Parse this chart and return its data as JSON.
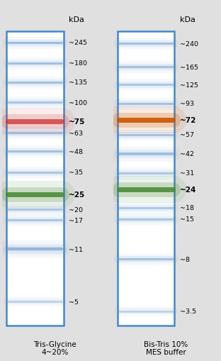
{
  "figure_bg": "#e0e0e0",
  "left_panel": {
    "label": "Tris-Glycine\n4~20%",
    "bands": [
      {
        "kda": 245,
        "label": "~245",
        "bold": false,
        "color": "#6699cc",
        "alpha": 0.55,
        "lw": 2.2
      },
      {
        "kda": 180,
        "label": "~180",
        "bold": false,
        "color": "#6699cc",
        "alpha": 0.5,
        "lw": 2.2
      },
      {
        "kda": 135,
        "label": "~135",
        "bold": false,
        "color": "#6699cc",
        "alpha": 0.5,
        "lw": 2.2
      },
      {
        "kda": 100,
        "label": "~100",
        "bold": false,
        "color": "#6699cc",
        "alpha": 0.45,
        "lw": 2.2
      },
      {
        "kda": 75,
        "label": "~75",
        "bold": true,
        "color": "#cc3333",
        "alpha": 0.75,
        "lw": 5.0
      },
      {
        "kda": 63,
        "label": "~63",
        "bold": false,
        "color": "#6699cc",
        "alpha": 0.5,
        "lw": 2.2
      },
      {
        "kda": 48,
        "label": "~48",
        "bold": false,
        "color": "#6699cc",
        "alpha": 0.5,
        "lw": 2.2
      },
      {
        "kda": 35,
        "label": "~35",
        "bold": false,
        "color": "#6699cc",
        "alpha": 0.45,
        "lw": 2.2
      },
      {
        "kda": 25,
        "label": "~25",
        "bold": true,
        "color": "#448833",
        "alpha": 0.85,
        "lw": 5.0
      },
      {
        "kda": 20,
        "label": "~20",
        "bold": false,
        "color": "#6699cc",
        "alpha": 0.45,
        "lw": 2.2
      },
      {
        "kda": 17,
        "label": "~17",
        "bold": false,
        "color": "#6699cc",
        "alpha": 0.45,
        "lw": 2.2
      },
      {
        "kda": 11,
        "label": "~11",
        "bold": false,
        "color": "#6699cc",
        "alpha": 0.6,
        "lw": 3.2
      },
      {
        "kda": 5,
        "label": "~5",
        "bold": false,
        "color": "#6699cc",
        "alpha": 0.38,
        "lw": 1.8
      }
    ],
    "y_min": 3.5,
    "y_max": 290
  },
  "right_panel": {
    "label": "Bis-Tris 10%\nMES buffer",
    "bands": [
      {
        "kda": 240,
        "label": "~240",
        "bold": false,
        "color": "#6699cc",
        "alpha": 0.5,
        "lw": 2.2
      },
      {
        "kda": 165,
        "label": "~165",
        "bold": false,
        "color": "#6699cc",
        "alpha": 0.5,
        "lw": 2.2
      },
      {
        "kda": 125,
        "label": "~125",
        "bold": false,
        "color": "#6699cc",
        "alpha": 0.45,
        "lw": 2.2
      },
      {
        "kda": 93,
        "label": "~93",
        "bold": false,
        "color": "#6699cc",
        "alpha": 0.5,
        "lw": 2.2
      },
      {
        "kda": 72,
        "label": "~72",
        "bold": true,
        "color": "#cc5500",
        "alpha": 0.9,
        "lw": 5.0
      },
      {
        "kda": 57,
        "label": "~57",
        "bold": false,
        "color": "#6699cc",
        "alpha": 0.5,
        "lw": 2.2
      },
      {
        "kda": 42,
        "label": "~42",
        "bold": false,
        "color": "#6699cc",
        "alpha": 0.55,
        "lw": 2.8
      },
      {
        "kda": 31,
        "label": "~31",
        "bold": false,
        "color": "#6699cc",
        "alpha": 0.45,
        "lw": 2.2
      },
      {
        "kda": 24,
        "label": "~24",
        "bold": true,
        "color": "#448833",
        "alpha": 0.85,
        "lw": 5.0
      },
      {
        "kda": 18,
        "label": "~18",
        "bold": false,
        "color": "#6699cc",
        "alpha": 0.45,
        "lw": 2.2
      },
      {
        "kda": 15,
        "label": "~15",
        "bold": false,
        "color": "#6699cc",
        "alpha": 0.45,
        "lw": 2.2
      },
      {
        "kda": 8,
        "label": "~8",
        "bold": false,
        "color": "#6699cc",
        "alpha": 0.5,
        "lw": 2.2
      },
      {
        "kda": 3.5,
        "label": "~3.5",
        "bold": false,
        "color": "#6699cc",
        "alpha": 0.38,
        "lw": 1.8
      }
    ],
    "y_min": 2.8,
    "y_max": 290
  }
}
